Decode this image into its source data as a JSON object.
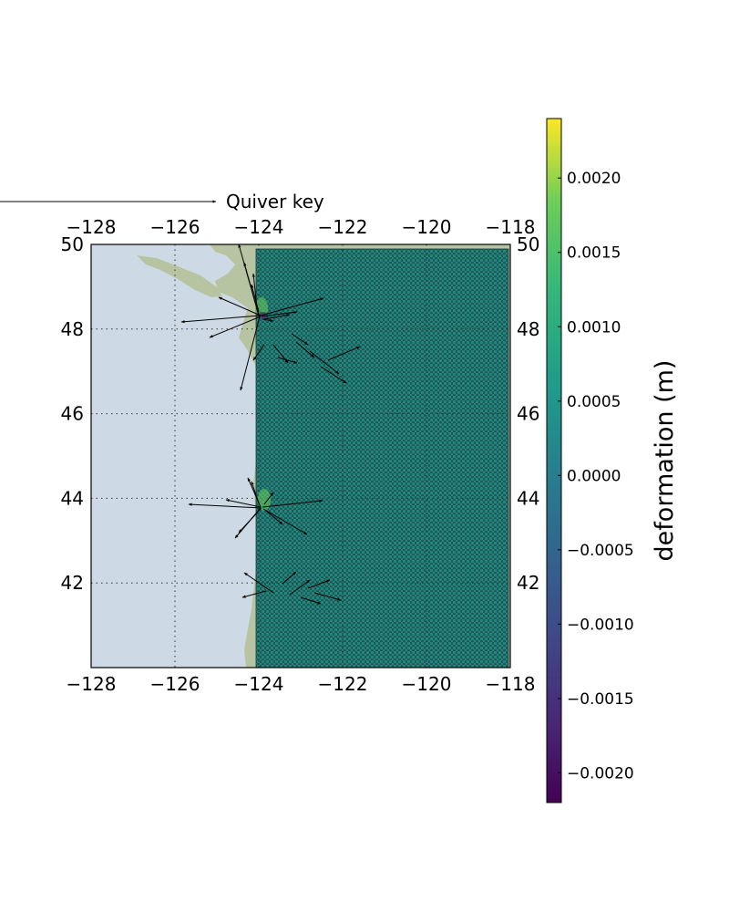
{
  "chart_data": {
    "type": "map-quiver",
    "title": "",
    "quiver_key_label": "Quiver key",
    "colorbar_label": "deformation (m)",
    "xlim": [
      -128,
      -118
    ],
    "ylim": [
      40,
      50
    ],
    "x_ticks": [
      "−128",
      "−126",
      "−124",
      "−122",
      "−120",
      "−118"
    ],
    "x_tick_values": [
      -128,
      -126,
      -124,
      -122,
      -120,
      -118
    ],
    "y_ticks": [
      "42",
      "44",
      "46",
      "48",
      "50"
    ],
    "y_tick_values": [
      42,
      44,
      46,
      48,
      50
    ],
    "colorbar_ticks": [
      "0.0020",
      "0.0015",
      "0.0010",
      "0.0005",
      "0.0000",
      "−0.0005",
      "−0.0010",
      "−0.0015",
      "−0.0020"
    ],
    "colorbar_values": [
      0.002,
      0.0015,
      0.001,
      0.0005,
      0.0,
      -0.0005,
      -0.001,
      -0.0015,
      -0.002
    ],
    "colorbar_range": [
      -0.0022,
      0.0024
    ],
    "colormap": "viridis",
    "grid": "dotted",
    "station_grid_extent": {
      "lon": [
        -124.05,
        -118.05
      ],
      "lat": [
        40,
        49.9
      ]
    },
    "colors": {
      "ocean": "#cdd9e5",
      "grid_fill": "#2a8d86",
      "arrow": "#000000"
    }
  }
}
